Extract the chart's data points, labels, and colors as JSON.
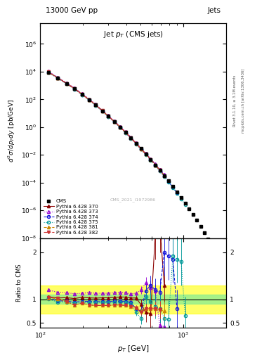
{
  "title_top": "13000 GeV pp",
  "title_right": "Jets",
  "plot_title": "Jet p_{T} (CMS jets)",
  "xlabel": "p_{T} [GeV]",
  "ylabel_main": "d^{2}#sigma/dp_{T}dy [pb/GeV]",
  "ylabel_ratio": "Ratio to CMS",
  "right_label1": "Rivet 3.1.10, >= 3.1M events",
  "right_label2": "mcplots.cern.ch [arXiv:1306.3436]",
  "watermark": "CMS_2021_I1972986",
  "cms_x": [
    114,
    133,
    153,
    174,
    196,
    220,
    245,
    272,
    300,
    330,
    362,
    395,
    431,
    468,
    507,
    548,
    592,
    638,
    686,
    737,
    790,
    846,
    905,
    967,
    1032,
    1101,
    1172,
    1248,
    1327,
    1409,
    1494,
    1583
  ],
  "cms_y": [
    9000,
    3500,
    1400,
    600,
    230,
    95,
    39,
    15,
    6.0,
    2.5,
    1.0,
    0.42,
    0.17,
    0.068,
    0.028,
    0.011,
    0.0046,
    0.0019,
    0.00078,
    0.00032,
    0.00013,
    5.2e-05,
    2.1e-05,
    8.4e-06,
    3.3e-06,
    1.3e-06,
    5e-07,
    1.9e-07,
    7e-08,
    2.5e-08,
    8.5e-09,
    2.8e-09
  ],
  "py370_x": [
    114,
    133,
    153,
    174,
    196,
    220,
    245,
    272,
    300,
    330,
    362,
    395,
    431,
    468,
    507,
    548,
    592,
    638,
    686,
    737
  ],
  "py370_y": [
    9500,
    3600,
    1450,
    610,
    240,
    98,
    40,
    15.5,
    6.2,
    2.6,
    1.05,
    0.44,
    0.175,
    0.07,
    0.029,
    0.012,
    0.005,
    0.0021,
    0.00085,
    0.00035
  ],
  "py373_x": [
    114,
    133,
    153,
    174,
    196,
    220,
    245,
    272,
    300,
    330,
    362,
    395,
    431,
    468,
    507,
    548,
    592,
    638,
    686,
    737
  ],
  "py373_y": [
    10500,
    4000,
    1600,
    670,
    260,
    108,
    44,
    17,
    6.8,
    2.85,
    1.15,
    0.48,
    0.19,
    0.077,
    0.031,
    0.013,
    0.0053,
    0.0022,
    0.0009,
    0.00038
  ],
  "py374_x": [
    114,
    133,
    153,
    174,
    196,
    220,
    245,
    272,
    300,
    330,
    362,
    395,
    431,
    468,
    507,
    548,
    592,
    638,
    686,
    737,
    790,
    846,
    905
  ],
  "py374_y": [
    9200,
    3400,
    1350,
    565,
    220,
    91,
    37,
    14.3,
    5.7,
    2.4,
    0.96,
    0.4,
    0.16,
    0.064,
    0.026,
    0.011,
    0.0044,
    0.0018,
    0.00072,
    0.00029,
    0.000118,
    4.6e-05,
    1.8e-05
  ],
  "py375_x": [
    114,
    133,
    153,
    174,
    196,
    220,
    245,
    272,
    300,
    330,
    362,
    395,
    431,
    468,
    507,
    548,
    592,
    638,
    686,
    737,
    790,
    846,
    905,
    967,
    1032
  ],
  "py375_y": [
    9100,
    3300,
    1320,
    555,
    215,
    89,
    36.5,
    14.0,
    5.6,
    2.35,
    0.94,
    0.39,
    0.155,
    0.062,
    0.025,
    0.01,
    0.0042,
    0.0017,
    0.0007,
    0.00028,
    0.000113,
    4.5e-05,
    1.75e-05,
    6.8e-06,
    2.6e-06
  ],
  "py381_x": [
    114,
    133,
    153,
    174,
    196,
    220,
    245,
    272,
    300,
    330,
    362,
    395,
    431,
    468,
    507,
    548,
    592,
    638,
    686,
    737
  ],
  "py381_y": [
    9300,
    3550,
    1420,
    596,
    232,
    96,
    39.2,
    15.1,
    6.0,
    2.5,
    1.01,
    0.42,
    0.167,
    0.067,
    0.027,
    0.011,
    0.0046,
    0.0019,
    0.00076,
    0.00031
  ],
  "py382_x": [
    114,
    133,
    153,
    174,
    196,
    220,
    245,
    272,
    300,
    330,
    362,
    395,
    431,
    468,
    507,
    548,
    592,
    638,
    686
  ],
  "py382_y": [
    9400,
    3580,
    1430,
    600,
    234,
    97,
    39.5,
    15.2,
    6.1,
    2.52,
    1.02,
    0.425,
    0.169,
    0.068,
    0.027,
    0.011,
    0.0046,
    0.0019,
    0.00077
  ],
  "ratio_py370_x": [
    114,
    133,
    153,
    174,
    196,
    220,
    245,
    272,
    300,
    330,
    362,
    395,
    431,
    468,
    507,
    548,
    592,
    638,
    686,
    737
  ],
  "ratio_py370_y": [
    1.055,
    1.029,
    1.036,
    1.017,
    1.043,
    1.032,
    1.026,
    1.033,
    1.033,
    1.04,
    1.05,
    1.048,
    1.029,
    1.029,
    0.89,
    0.72,
    0.7,
    2.35,
    2.6,
    1.3
  ],
  "ratio_py370_yerr": [
    0.02,
    0.02,
    0.02,
    0.02,
    0.02,
    0.02,
    0.02,
    0.02,
    0.02,
    0.02,
    0.03,
    0.03,
    0.03,
    0.05,
    0.1,
    0.2,
    0.3,
    0.5,
    0.6,
    0.4
  ],
  "ratio_py373_x": [
    114,
    133,
    153,
    174,
    196,
    220,
    245,
    272,
    300,
    330,
    362,
    395,
    431,
    468,
    507,
    548,
    592,
    638,
    686,
    737
  ],
  "ratio_py373_y": [
    1.2,
    1.15,
    1.14,
    1.12,
    1.13,
    1.14,
    1.13,
    1.13,
    1.13,
    1.14,
    1.15,
    1.14,
    1.12,
    1.13,
    1.2,
    1.35,
    1.25,
    1.18,
    0.45,
    0.42
  ],
  "ratio_py373_yerr": [
    0.02,
    0.02,
    0.02,
    0.02,
    0.02,
    0.02,
    0.02,
    0.02,
    0.02,
    0.02,
    0.03,
    0.03,
    0.03,
    0.05,
    0.08,
    0.12,
    0.15,
    0.15,
    0.2,
    0.3
  ],
  "ratio_py374_x": [
    114,
    133,
    153,
    174,
    196,
    220,
    245,
    272,
    300,
    330,
    362,
    395,
    431,
    468,
    507,
    548,
    592,
    638,
    686,
    737,
    790,
    846,
    905
  ],
  "ratio_py374_y": [
    1.022,
    0.971,
    0.964,
    0.942,
    0.957,
    0.958,
    0.949,
    0.953,
    0.95,
    0.96,
    0.96,
    0.952,
    0.941,
    0.8,
    0.75,
    1.18,
    1.3,
    1.2,
    1.15,
    2.0,
    1.92,
    1.85,
    0.8
  ],
  "ratio_py374_yerr": [
    0.02,
    0.02,
    0.02,
    0.02,
    0.02,
    0.02,
    0.02,
    0.02,
    0.02,
    0.02,
    0.03,
    0.03,
    0.04,
    0.06,
    0.1,
    0.15,
    0.2,
    0.25,
    0.3,
    0.5,
    0.5,
    0.5,
    0.4
  ],
  "ratio_py375_x": [
    114,
    133,
    153,
    174,
    196,
    220,
    245,
    272,
    300,
    330,
    362,
    395,
    431,
    468,
    507,
    548,
    592,
    638,
    686,
    737,
    790,
    846,
    905,
    967,
    1032
  ],
  "ratio_py375_y": [
    1.011,
    0.943,
    0.943,
    0.925,
    0.935,
    0.937,
    0.936,
    0.933,
    0.933,
    0.94,
    0.94,
    0.929,
    0.912,
    0.72,
    0.6,
    1.05,
    0.95,
    0.85,
    0.8,
    0.6,
    0.58,
    1.92,
    1.85,
    1.8,
    0.65
  ],
  "ratio_py375_yerr": [
    0.02,
    0.02,
    0.02,
    0.02,
    0.02,
    0.02,
    0.02,
    0.02,
    0.02,
    0.02,
    0.03,
    0.03,
    0.04,
    0.07,
    0.12,
    0.15,
    0.2,
    0.25,
    0.3,
    0.35,
    0.4,
    0.5,
    0.5,
    0.5,
    0.4
  ],
  "ratio_py381_x": [
    114,
    133,
    153,
    174,
    196,
    220,
    245,
    272,
    300,
    330,
    362,
    395,
    431,
    468,
    507,
    548,
    592,
    638,
    686,
    737
  ],
  "ratio_py381_y": [
    1.033,
    1.014,
    0.95,
    0.88,
    0.92,
    0.88,
    0.87,
    0.87,
    0.87,
    0.88,
    0.88,
    0.87,
    0.85,
    0.83,
    0.75,
    0.8,
    0.8,
    0.8,
    0.78,
    0.75
  ],
  "ratio_py381_yerr": [
    0.02,
    0.02,
    0.02,
    0.02,
    0.02,
    0.02,
    0.02,
    0.02,
    0.02,
    0.02,
    0.03,
    0.03,
    0.04,
    0.05,
    0.08,
    0.1,
    0.12,
    0.15,
    0.18,
    0.2
  ],
  "ratio_py382_x": [
    114,
    133,
    153,
    174,
    196,
    220,
    245,
    272,
    300,
    330,
    362,
    395,
    431,
    468,
    507,
    548,
    592,
    638,
    686
  ],
  "ratio_py382_y": [
    1.044,
    1.023,
    0.95,
    0.88,
    0.92,
    0.88,
    0.87,
    0.87,
    0.87,
    0.88,
    0.88,
    0.87,
    0.85,
    0.82,
    0.72,
    0.8,
    0.8,
    0.8,
    0.78
  ],
  "ratio_py382_yerr": [
    0.02,
    0.02,
    0.02,
    0.02,
    0.02,
    0.02,
    0.02,
    0.02,
    0.02,
    0.02,
    0.03,
    0.03,
    0.04,
    0.05,
    0.08,
    0.1,
    0.12,
    0.15,
    0.18
  ],
  "cms_color": "#000000",
  "py370_color": "#8B0000",
  "py373_color": "#9400D3",
  "py374_color": "#1515DC",
  "py375_color": "#009999",
  "py381_color": "#CC8800",
  "py382_color": "#CC3333",
  "band_green_inner": 0.1,
  "band_yellow_outer": 0.3,
  "xlim": [
    100,
    2000
  ],
  "ylim_main": [
    1e-08,
    30000000.0
  ],
  "ylim_ratio": [
    0.4,
    2.3
  ],
  "ratio_yticks": [
    0.5,
    1.0,
    2.0
  ]
}
